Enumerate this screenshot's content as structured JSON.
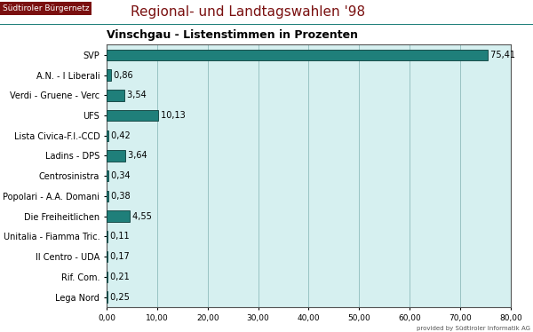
{
  "chart_data": {
    "type": "bar",
    "orientation": "horizontal",
    "title": "Regional- und Landtagswahlen '98",
    "subtitle": "Vinschgau - Listenstimmen in Prozenten",
    "annotations": [
      "Südtiroler Bürgernetz",
      "provided by Südtiroler Informatik AG"
    ],
    "categories": [
      "SVP",
      "A.N. - I Liberali",
      "Verdi - Gruene - Verc",
      "UFS",
      "Lista Civica-F.I.-CCD",
      "Ladins - DPS",
      "Centrosinistra",
      "Popolari - A.A. Domani",
      "Die Freiheitlichen",
      "Unitalia - Fiamma Tric.",
      "Il Centro - UDA",
      "Rif. Com.",
      "Lega Nord"
    ],
    "values": [
      75.41,
      0.86,
      3.54,
      10.13,
      0.42,
      3.64,
      0.34,
      0.38,
      4.55,
      0.11,
      0.17,
      0.21,
      0.25
    ],
    "value_labels": [
      "75,41",
      "0,86",
      "3,54",
      "10,13",
      "0,42",
      "3,64",
      "0,34",
      "0,38",
      "4,55",
      "0,11",
      "0,17",
      "0,21",
      "0,25"
    ],
    "data_labels": true,
    "color": "#1f7f7a",
    "xlim": [
      0,
      80
    ],
    "xticks": [
      {
        "value": 0,
        "label": "0,00"
      },
      {
        "value": 10,
        "label": "10,00"
      },
      {
        "value": 20,
        "label": "20,00"
      },
      {
        "value": 30,
        "label": "30,00"
      },
      {
        "value": 40,
        "label": "40,00"
      },
      {
        "value": 50,
        "label": "50,00"
      },
      {
        "value": 60,
        "label": "60,00"
      },
      {
        "value": 70,
        "label": "70,00"
      },
      {
        "value": 80,
        "label": "80,00"
      }
    ],
    "grid": true
  }
}
